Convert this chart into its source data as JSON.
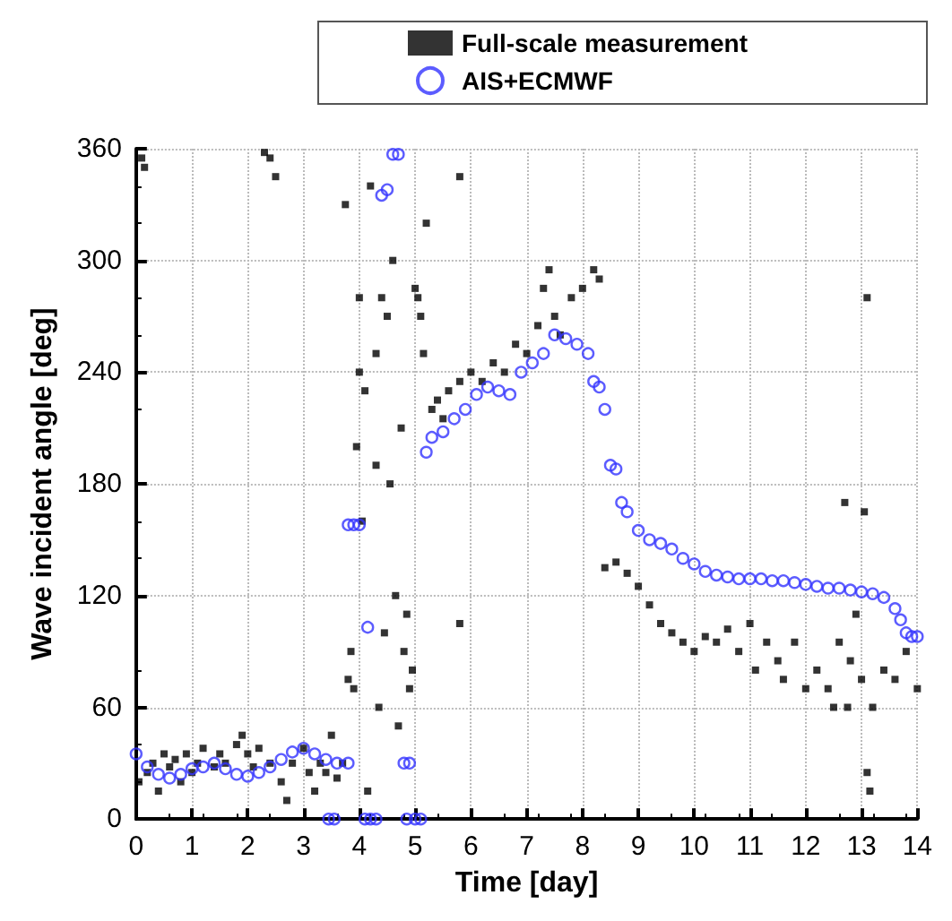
{
  "chart_data": {
    "type": "scatter",
    "xlabel": "Time [day]",
    "ylabel": "Wave incident angle [deg]",
    "xlim": [
      0,
      14
    ],
    "ylim": [
      0,
      360
    ],
    "xticks": [
      0,
      1,
      2,
      3,
      4,
      5,
      6,
      7,
      8,
      9,
      10,
      11,
      12,
      13,
      14
    ],
    "yticks": [
      0,
      60,
      120,
      180,
      240,
      300,
      360
    ],
    "grid": true,
    "legend": "top right",
    "series": [
      {
        "name": "Full-scale measurement",
        "color": "#000000",
        "marker": "square",
        "x": [
          0.05,
          0.1,
          0.15,
          0.2,
          0.3,
          0.4,
          0.5,
          0.6,
          0.7,
          0.8,
          0.9,
          1.0,
          1.1,
          1.2,
          1.4,
          1.5,
          1.6,
          1.8,
          1.9,
          2.0,
          2.1,
          2.2,
          2.3,
          2.4,
          2.5,
          2.4,
          2.6,
          2.7,
          2.8,
          3.0,
          3.1,
          3.2,
          3.3,
          3.4,
          3.5,
          3.6,
          3.7,
          3.75,
          3.8,
          3.85,
          3.9,
          3.95,
          4.0,
          4.0,
          4.05,
          4.1,
          4.15,
          4.2,
          4.3,
          4.3,
          4.35,
          4.4,
          4.45,
          4.5,
          4.55,
          4.6,
          4.65,
          4.7,
          4.75,
          4.8,
          4.85,
          4.9,
          4.95,
          5.0,
          5.05,
          5.1,
          5.15,
          5.2,
          5.3,
          5.4,
          5.5,
          5.6,
          5.8,
          5.8,
          5.8,
          6.0,
          6.2,
          6.4,
          6.6,
          6.8,
          7.0,
          7.2,
          7.3,
          7.4,
          7.5,
          7.6,
          7.8,
          8.0,
          8.2,
          8.3,
          8.4,
          8.6,
          8.8,
          9.0,
          9.2,
          9.4,
          9.6,
          9.8,
          10.0,
          10.2,
          10.4,
          10.6,
          10.8,
          11.0,
          11.1,
          11.3,
          11.5,
          11.6,
          11.8,
          12.0,
          12.2,
          12.4,
          12.5,
          12.6,
          12.7,
          12.75,
          12.8,
          12.9,
          13.0,
          13.05,
          13.1,
          13.1,
          13.15,
          13.2,
          13.4,
          13.6,
          13.8,
          14.0
        ],
        "values": [
          20,
          355,
          350,
          25,
          30,
          15,
          35,
          28,
          32,
          20,
          35,
          25,
          30,
          38,
          28,
          35,
          30,
          40,
          45,
          35,
          28,
          38,
          358,
          355,
          345,
          30,
          20,
          10,
          30,
          38,
          25,
          15,
          30,
          25,
          45,
          22,
          30,
          330,
          75,
          90,
          70,
          200,
          240,
          280,
          160,
          230,
          15,
          340,
          190,
          250,
          60,
          280,
          100,
          270,
          180,
          300,
          120,
          50,
          210,
          90,
          110,
          70,
          80,
          285,
          280,
          270,
          250,
          320,
          220,
          225,
          215,
          230,
          235,
          345,
          105,
          240,
          235,
          245,
          240,
          255,
          250,
          265,
          285,
          295,
          270,
          260,
          280,
          285,
          295,
          290,
          135,
          138,
          132,
          125,
          115,
          105,
          100,
          95,
          90,
          98,
          95,
          102,
          90,
          105,
          80,
          95,
          85,
          75,
          95,
          70,
          80,
          70,
          60,
          95,
          170,
          60,
          85,
          110,
          75,
          165,
          280,
          25,
          15,
          60,
          80,
          75,
          90,
          70
        ]
      },
      {
        "name": "AIS+ECMWF",
        "color": "#3333ff",
        "marker": "circle",
        "x": [
          0,
          0.2,
          0.4,
          0.6,
          0.8,
          1.0,
          1.2,
          1.4,
          1.6,
          1.8,
          2.0,
          2.2,
          2.4,
          2.6,
          2.8,
          3.0,
          3.2,
          3.4,
          3.6,
          3.8,
          3.45,
          3.55,
          3.8,
          3.9,
          4.0,
          4.1,
          4.2,
          4.3,
          4.15,
          4.4,
          4.5,
          4.6,
          4.7,
          4.8,
          4.9,
          4.85,
          5.0,
          5.1,
          5.2,
          5.3,
          5.5,
          5.7,
          5.9,
          6.1,
          6.3,
          6.5,
          6.7,
          6.9,
          7.1,
          7.3,
          7.5,
          7.7,
          7.9,
          8.1,
          8.2,
          8.3,
          8.4,
          8.5,
          8.6,
          8.7,
          8.8,
          9.0,
          9.2,
          9.4,
          9.6,
          9.8,
          10.0,
          10.2,
          10.4,
          10.6,
          10.8,
          11.0,
          11.2,
          11.4,
          11.6,
          11.8,
          12.0,
          12.2,
          12.4,
          12.6,
          12.8,
          13.0,
          13.2,
          13.4,
          13.6,
          13.7,
          13.8,
          13.9,
          14.0
        ],
        "values": [
          35,
          28,
          24,
          22,
          24,
          27,
          28,
          30,
          27,
          24,
          23,
          25,
          28,
          32,
          36,
          38,
          35,
          32,
          30,
          30,
          0,
          0,
          158,
          158,
          158,
          0,
          0,
          0,
          103,
          335,
          338,
          357,
          357,
          30,
          30,
          0,
          0,
          0,
          197,
          205,
          208,
          215,
          220,
          228,
          232,
          230,
          228,
          240,
          245,
          250,
          260,
          258,
          255,
          250,
          235,
          232,
          220,
          190,
          188,
          170,
          165,
          155,
          150,
          148,
          145,
          140,
          137,
          133,
          131,
          130,
          129,
          129,
          129,
          128,
          128,
          127,
          126,
          125,
          124,
          124,
          123,
          122,
          121,
          119,
          113,
          107,
          100,
          98,
          98
        ]
      }
    ]
  }
}
